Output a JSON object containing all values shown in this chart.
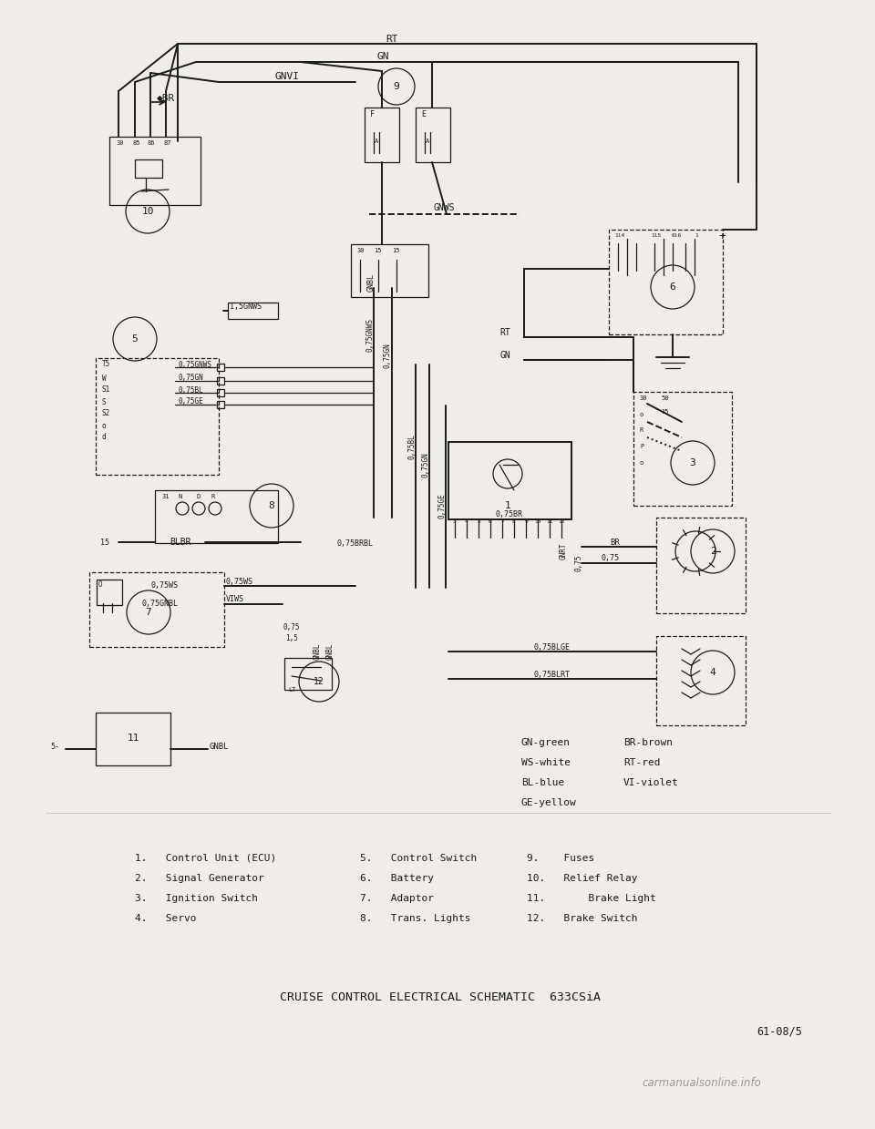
{
  "title": "CRUISE CONTROL ELECTRICAL SCHEMATIC  633CSiA",
  "page_ref": "61-08/5",
  "background_color": "#f0ede8",
  "line_color": "#1a1a1a",
  "text_color": "#1a1a1a",
  "legend_lines": [
    [
      "GN-green",
      "BR-brown"
    ],
    [
      "WS-white",
      "RT-red"
    ],
    [
      "BL-blue",
      "VI-violet"
    ],
    [
      "GE-yellow",
      ""
    ]
  ],
  "component_list": [
    [
      "1.   Control Unit (ECU)",
      "5.   Control Switch",
      "9.    Fuses"
    ],
    [
      "2.   Signal Generator",
      "6.   Battery",
      "10.   Relief Relay"
    ],
    [
      "3.   Ignition Switch",
      "7.   Adaptor",
      "11.       Brake Light"
    ],
    [
      "4.   Servo",
      "8.   Trans. Lights",
      "12.   Brake Switch"
    ]
  ],
  "watermark": "carmanualsonline.info",
  "font_family": "monospace"
}
